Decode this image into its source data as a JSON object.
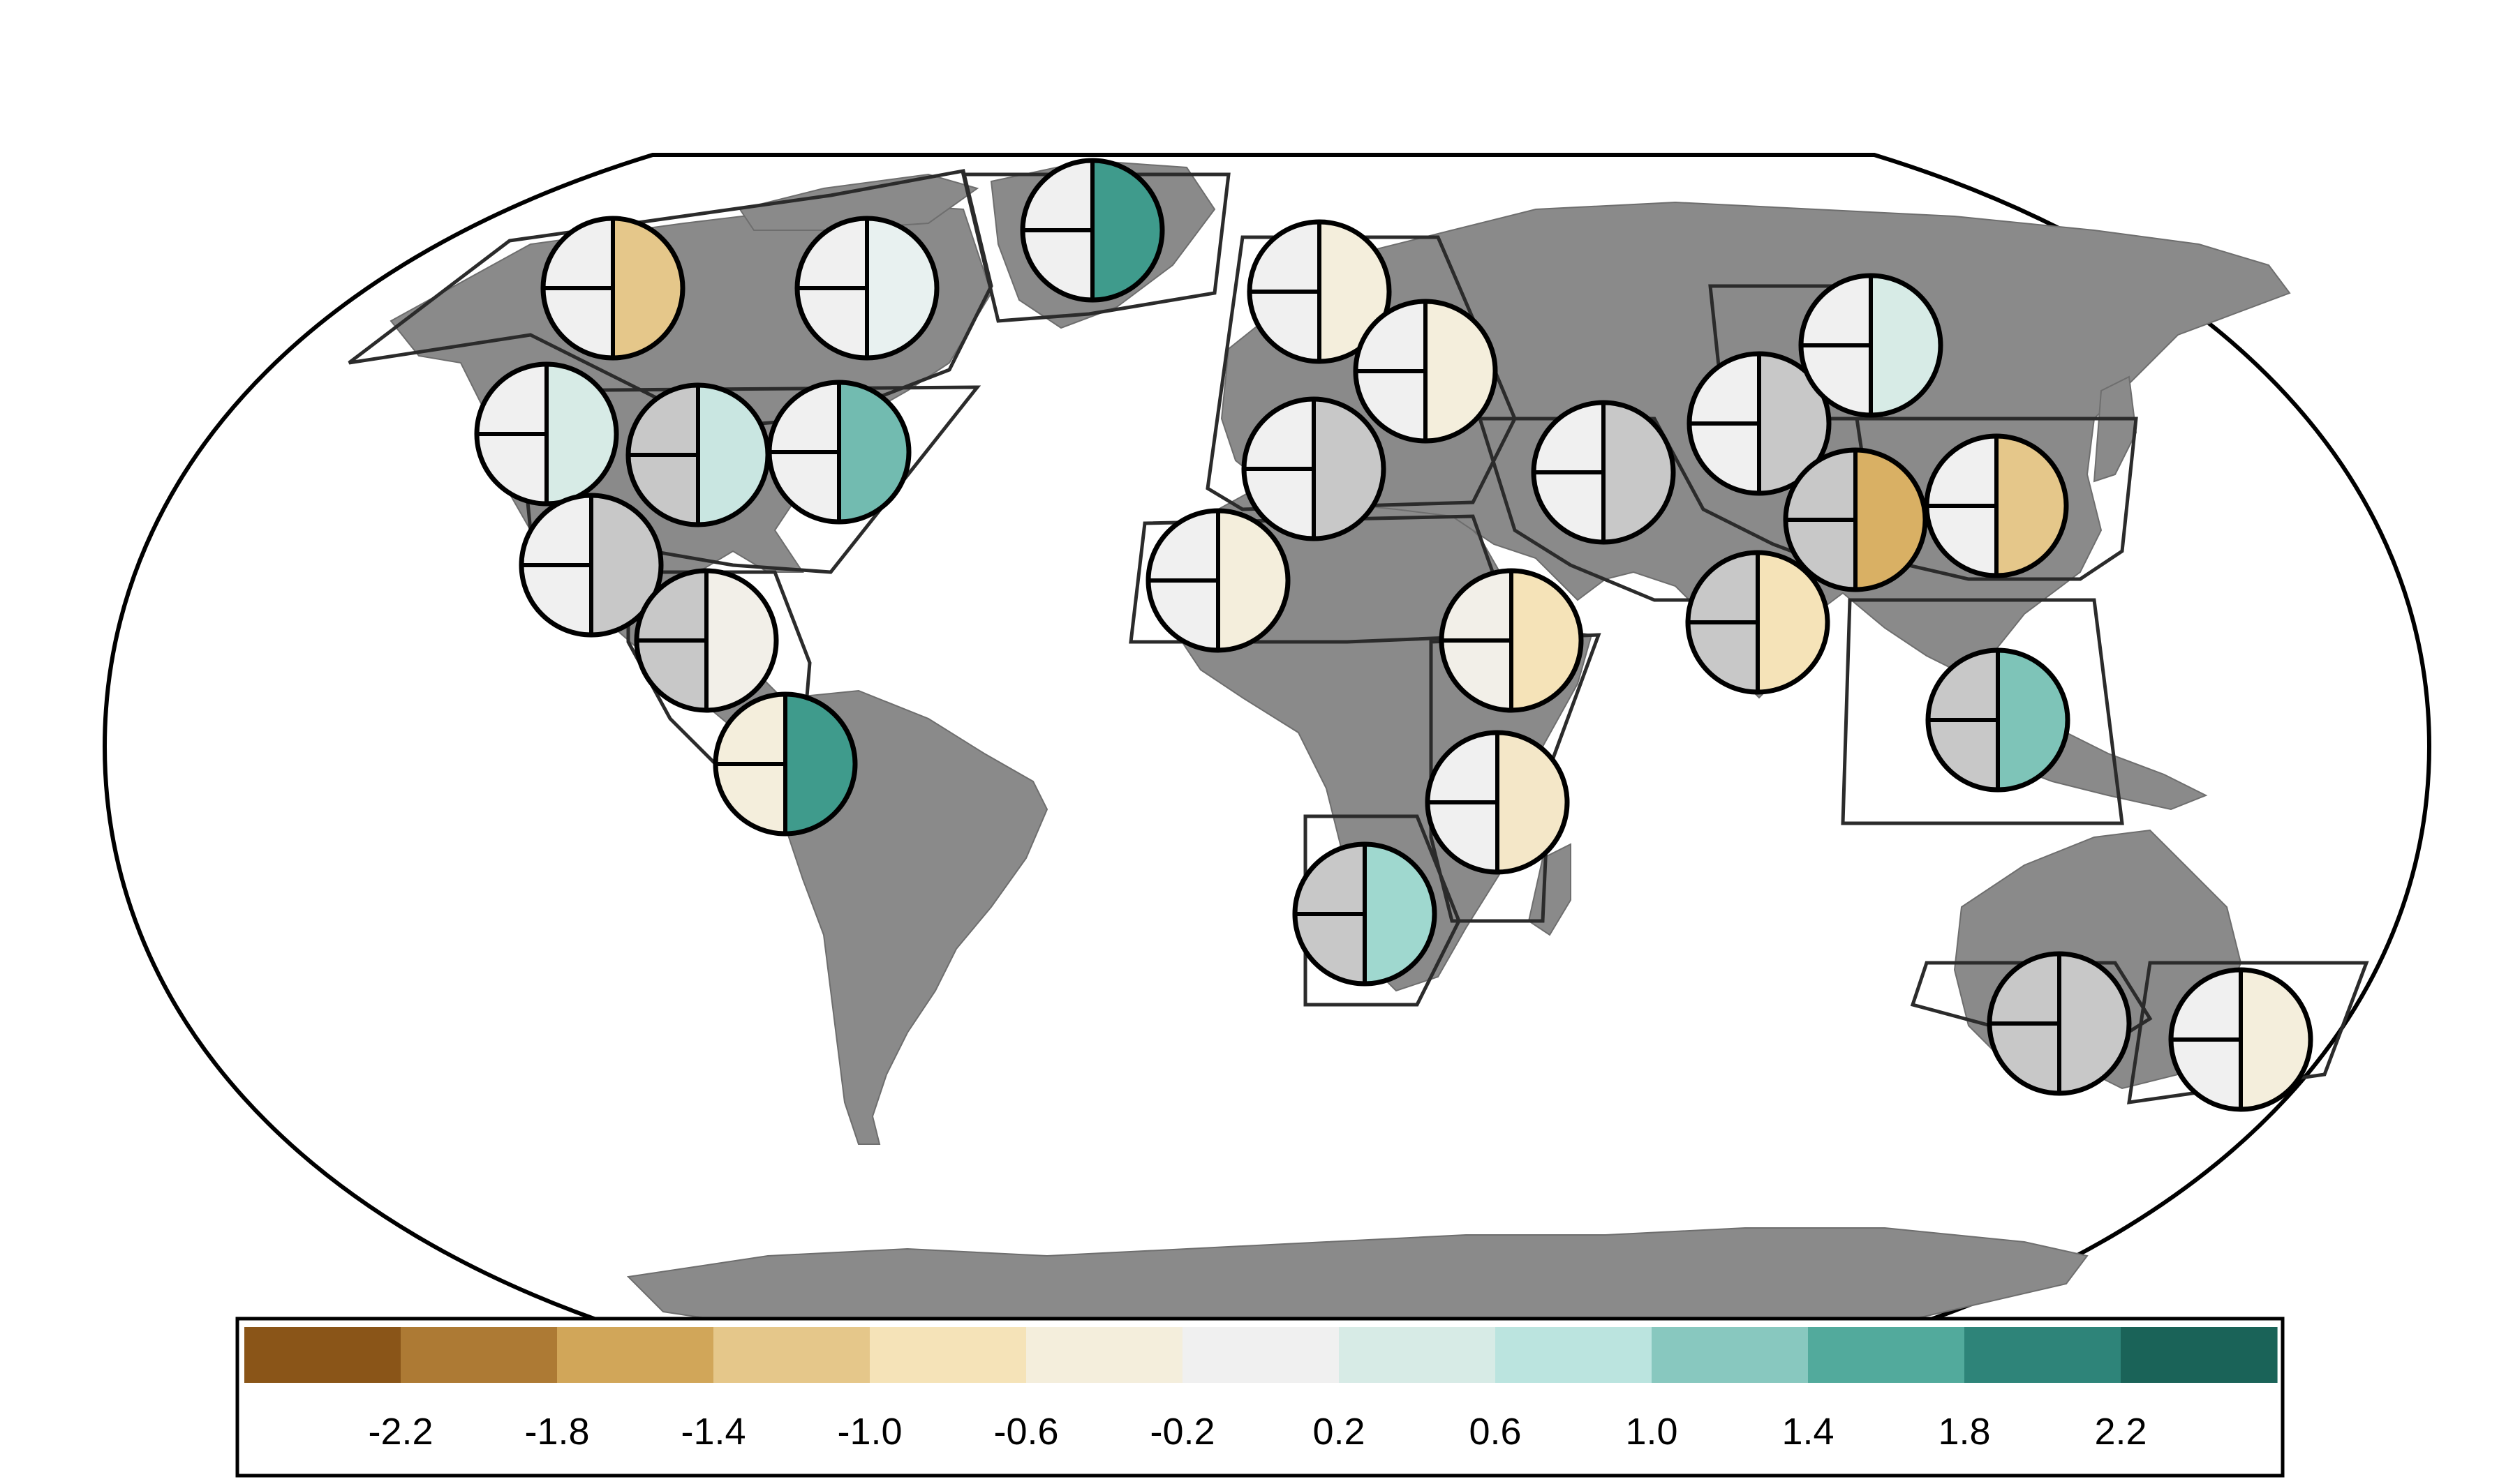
{
  "colors": {
    "land": "#8a8a8a",
    "land_border": "#6e6e6e",
    "ocean": "#ffffff",
    "outline": "#000000",
    "region_outline": "#2b2b2b",
    "pie_outline": "#000000"
  },
  "colorbar": {
    "bins": [
      "#8a5518",
      "#ad7a34",
      "#d1a659",
      "#e5c78a",
      "#f5e3b8",
      "#f4eedc",
      "#f0f0f0",
      "#d7ebe6",
      "#bbe4df",
      "#88c8bf",
      "#52aa9c",
      "#2e8479",
      "#1a6358"
    ],
    "tick_labels": [
      "-2.2",
      "-1.8",
      "-1.4",
      "-1.0",
      "-0.6",
      "-0.2",
      "0.2",
      "0.6",
      "1.0",
      "1.4",
      "1.8",
      "2.2"
    ]
  },
  "regions": [
    {
      "id": "northwest-north-america",
      "left": "#f0f0f0",
      "right": "#e5c78a"
    },
    {
      "id": "northeast-north-america",
      "left": "#f0f0f0",
      "right": "#e8f1f0"
    },
    {
      "id": "greenland",
      "left": "#f0f0f0",
      "right": "#3f9b8c"
    },
    {
      "id": "west-north-america",
      "left": "#f0f0f0",
      "right": "#d7ebe6"
    },
    {
      "id": "central-north-america",
      "left": "#c8c8c8",
      "right": "#c9e6e1"
    },
    {
      "id": "east-north-america",
      "left": "#f0f0f0",
      "right": "#72bbb0"
    },
    {
      "id": "north-central-america",
      "left": "#f0f0f0",
      "right": "#c8c8c8"
    },
    {
      "id": "south-central-america",
      "left": "#c8c8c8",
      "right": "#f2efe8"
    },
    {
      "id": "northwest-south-america",
      "left": "#f4eedc",
      "right": "#3f9b8c"
    },
    {
      "id": "northern-europe",
      "left": "#f0f0f0",
      "right": "#f4eedc"
    },
    {
      "id": "west-central-europe",
      "left": "#f0f0f0",
      "right": "#f4eedc"
    },
    {
      "id": "mediterranean",
      "left": "#f0f0f0",
      "right": "#c8c8c8"
    },
    {
      "id": "sahara",
      "left": "#f0f0f0",
      "right": "#f4eedc"
    },
    {
      "id": "west-asia",
      "left": "#f0f0f0",
      "right": "#c8c8c8"
    },
    {
      "id": "central-asia",
      "left": "#f0f0f0",
      "right": "#c8c8c8"
    },
    {
      "id": "east-siberia",
      "left": "#f0f0f0",
      "right": "#d7ebe6"
    },
    {
      "id": "tibetan-plateau",
      "left": "#c8c8c8",
      "right": "#d9b064"
    },
    {
      "id": "east-asia",
      "left": "#f0f0f0",
      "right": "#e5c78a"
    },
    {
      "id": "south-asia",
      "left": "#c8c8c8",
      "right": "#f5e3b8"
    },
    {
      "id": "northeast-africa",
      "left": "#f2efe8",
      "right": "#f5e3b8"
    },
    {
      "id": "east-africa",
      "left": "#f0f0f0",
      "right": "#f4e7c8"
    },
    {
      "id": "southern-africa",
      "left": "#c8c8c8",
      "right": "#9fd8cf"
    },
    {
      "id": "southeast-asia",
      "left": "#c8c8c8",
      "right": "#7ec4b8"
    },
    {
      "id": "western-australia",
      "left": "#c8c8c8",
      "right": "#c8c8c8"
    },
    {
      "id": "eastern-australia",
      "left": "#f0f0f0",
      "right": "#f4eedc"
    }
  ]
}
